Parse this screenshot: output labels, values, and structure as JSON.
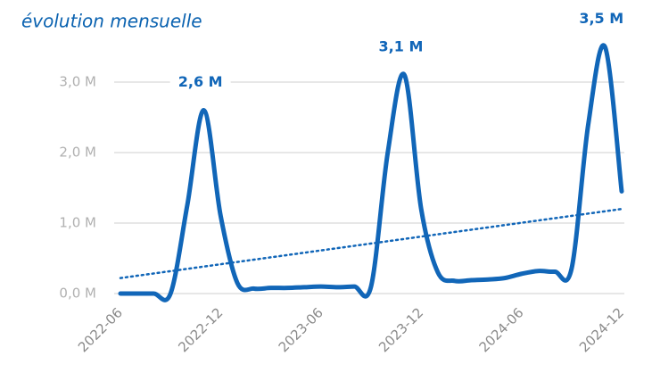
{
  "chart_data": {
    "type": "line",
    "title": "évolution mensuelle",
    "categories": [
      "2022-06",
      null,
      null,
      null,
      null,
      null,
      "2022-12",
      null,
      null,
      null,
      null,
      null,
      "2023-06",
      null,
      null,
      null,
      null,
      null,
      "2023-12",
      null,
      null,
      null,
      null,
      null,
      "2024-06",
      null,
      null,
      null,
      null,
      null,
      "2024-12"
    ],
    "series": [
      {
        "color": "#1166b8",
        "values": [
          0,
          0,
          0,
          0,
          1.25,
          2.6,
          1.1,
          0.15,
          0.07,
          0.08,
          0.08,
          0.09,
          0.1,
          0.09,
          0.1,
          0.1,
          2.0,
          3.1,
          1.2,
          0.3,
          0.18,
          0.19,
          0.2,
          0.22,
          0.28,
          0.32,
          0.31,
          0.35,
          2.4,
          3.5,
          1.45
        ],
        "value_labels": [
          null,
          null,
          null,
          null,
          null,
          "2,6 M",
          null,
          null,
          null,
          null,
          null,
          null,
          null,
          null,
          null,
          null,
          null,
          "3,1 M",
          null,
          null,
          null,
          null,
          null,
          null,
          null,
          null,
          null,
          null,
          null,
          "3,5 M",
          null
        ]
      }
    ],
    "trend": {
      "color": "#1166b8",
      "values": [
        0.22,
        1.2
      ]
    },
    "ylim": [
      0,
      3.6
    ],
    "yticks": [
      {
        "value": 0,
        "label": "0,0 M"
      },
      {
        "value": 1,
        "label": "1,0 M"
      },
      {
        "value": 2,
        "label": "2,0 M"
      },
      {
        "value": 3,
        "label": "3,0 M"
      }
    ],
    "grid": true
  }
}
